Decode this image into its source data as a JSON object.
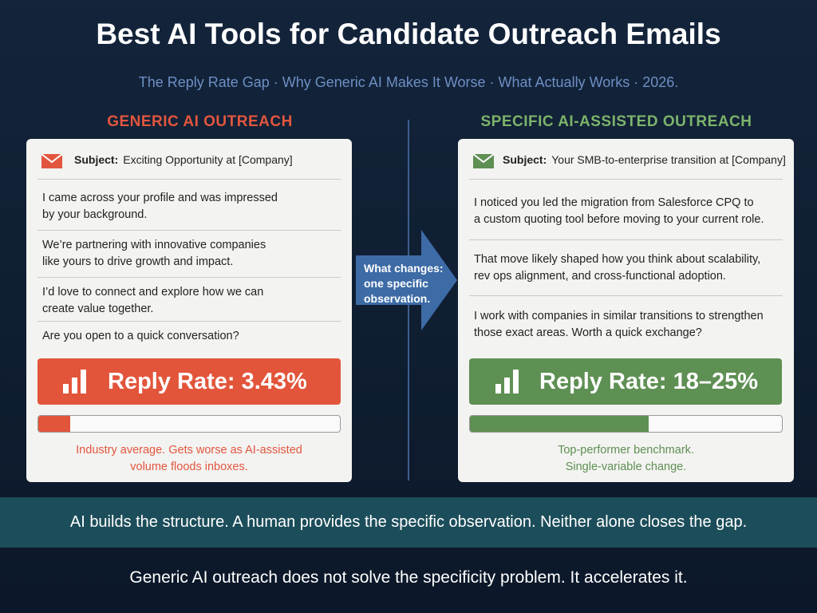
{
  "title": "Best AI Tools for Candidate Outreach Emails",
  "subtitle": "The Reply Rate Gap · Why Generic AI Makes It Worse · What Actually Works · 2026.",
  "left": {
    "heading": "GENERIC AI OUTREACH",
    "subject_label": "Subject:",
    "subject": "Exciting Opportunity at [Company]",
    "paragraphs": [
      [
        "I came across your profile and was impressed",
        "by your background."
      ],
      [
        "We’re partnering with innovative companies",
        "like yours to drive growth and impact."
      ],
      [
        "I’d love to connect and explore how we can",
        "create value together."
      ],
      [
        "Are you open to a quick conversation?"
      ]
    ],
    "reply_rate": "Reply Rate: 3.43%",
    "note": [
      "Industry average. Gets worse as AI-assisted",
      "volume floods inboxes."
    ]
  },
  "right": {
    "heading": "SPECIFIC AI-ASSISTED OUTREACH",
    "subject_label": "Subject:",
    "subject": "Your SMB-to-enterprise transition at [Company]",
    "paragraphs": [
      [
        "I noticed you led the migration from Salesforce CPQ to",
        "a custom quoting tool before moving to your current role."
      ],
      [
        "That move likely shaped how you think about scalability,",
        "rev ops alignment, and cross-functional adoption."
      ],
      [
        "I work with companies in similar transitions to strengthen",
        "those exact areas. Worth a quick exchange?"
      ]
    ],
    "reply_rate": "Reply Rate: 18–25%",
    "note": [
      "Top-performer benchmark.",
      "Single-variable change."
    ]
  },
  "arrow_text": [
    "What changes:",
    "one specific",
    "observation."
  ],
  "banner": "AI builds the structure. A human provides the specific observation. Neither alone closes the gap.",
  "footer": "Generic AI outreach does not solve the specificity problem. It accelerates it."
}
